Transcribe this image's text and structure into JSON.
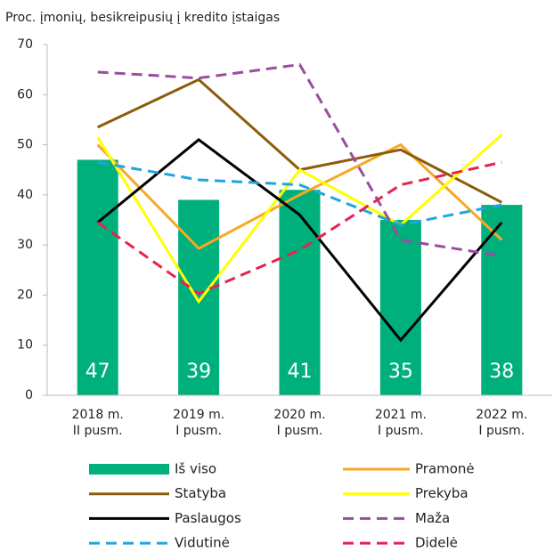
{
  "chart_data": {
    "type": "bar-line",
    "y_label": "Proc. įmonių, besikreipusių į kredito įstaigas",
    "categories": [
      [
        "2018 m.",
        "II pusm."
      ],
      [
        "2019 m.",
        "I pusm."
      ],
      [
        "2020 m.",
        "I pusm."
      ],
      [
        "2021 m.",
        "I pusm."
      ],
      [
        "2022 m.",
        "I pusm."
      ]
    ],
    "ylim": [
      0,
      70
    ],
    "yticks": [
      0,
      10,
      20,
      30,
      40,
      50,
      60,
      70
    ],
    "grid": false,
    "series": [
      {
        "name": "Iš viso",
        "type": "bar",
        "color": "#00b07c",
        "values": [
          47,
          39,
          41,
          35,
          38
        ]
      },
      {
        "name": "Pramonė",
        "type": "line",
        "color": "#f7a823",
        "dashed": false,
        "values": [
          50,
          29.3,
          40,
          50,
          31
        ]
      },
      {
        "name": "Statyba",
        "type": "line",
        "color": "#8c5b0c",
        "dashed": false,
        "values": [
          53.5,
          63,
          45,
          49,
          38.5
        ]
      },
      {
        "name": "Prekyba",
        "type": "line",
        "color": "#ffff00",
        "dashed": false,
        "values": [
          51.5,
          18.7,
          45,
          34,
          52
        ]
      },
      {
        "name": "Paslaugos",
        "type": "line",
        "color": "#000000",
        "dashed": false,
        "values": [
          34.5,
          51,
          36,
          11,
          34.5
        ]
      },
      {
        "name": "Maža",
        "type": "line",
        "color": "#9a4d9e",
        "dashed": true,
        "values": [
          64.5,
          63.3,
          66,
          31,
          27.8
        ]
      },
      {
        "name": "Vidutinė",
        "type": "line",
        "color": "#1fa6df",
        "dashed": true,
        "values": [
          46.5,
          43,
          42,
          34,
          38
        ]
      },
      {
        "name": "Didelė",
        "type": "line",
        "color": "#e52350",
        "dashed": true,
        "values": [
          34.5,
          20.3,
          29,
          42,
          46.5
        ]
      }
    ]
  }
}
